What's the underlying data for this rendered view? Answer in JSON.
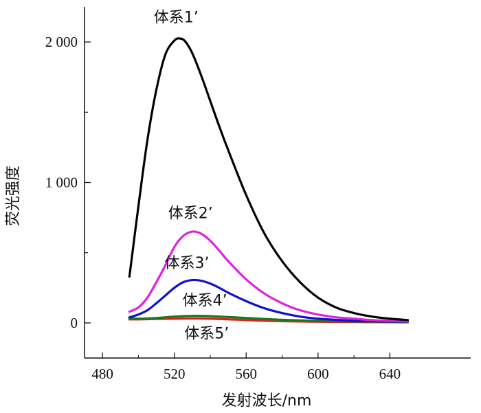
{
  "chart_data": {
    "type": "line",
    "title": "",
    "xlabel": "发射波长/nm",
    "ylabel": "荧光强度",
    "xlim": [
      470,
      685
    ],
    "ylim": [
      -250,
      2250
    ],
    "x_ticks": [
      480,
      520,
      560,
      600,
      640
    ],
    "x_tick_labels": [
      "480",
      "520",
      "560",
      "600",
      "640"
    ],
    "y_ticks": [
      0,
      1000,
      2000
    ],
    "y_tick_labels": [
      "0",
      "1 000",
      "2 000"
    ],
    "grid": false,
    "legend": "none",
    "series": [
      {
        "name": "体系1’",
        "color": "#000000",
        "x": [
          495,
          500,
          505,
          510,
          515,
          520,
          523,
          526,
          530,
          535,
          540,
          545,
          550,
          560,
          570,
          580,
          590,
          600,
          610,
          620,
          630,
          640,
          650
        ],
        "y": [
          330,
          830,
          1300,
          1660,
          1910,
          2010,
          2025,
          2005,
          1920,
          1760,
          1580,
          1400,
          1230,
          910,
          640,
          440,
          290,
          180,
          110,
          70,
          45,
          30,
          20
        ]
      },
      {
        "name": "体系2’",
        "color": "#e020e0",
        "x": [
          495,
          500,
          505,
          510,
          515,
          520,
          525,
          530,
          535,
          540,
          545,
          550,
          560,
          570,
          580,
          590,
          600,
          610,
          620,
          630,
          640,
          650
        ],
        "y": [
          80,
          110,
          180,
          290,
          410,
          540,
          620,
          650,
          635,
          585,
          515,
          440,
          310,
          210,
          140,
          90,
          60,
          40,
          30,
          20,
          15,
          10
        ]
      },
      {
        "name": "体系3’",
        "color": "#1010d0",
        "x": [
          495,
          500,
          505,
          510,
          515,
          520,
          525,
          530,
          535,
          540,
          545,
          550,
          560,
          570,
          580,
          590,
          600,
          610,
          620,
          630,
          640,
          650
        ],
        "y": [
          40,
          60,
          90,
          140,
          195,
          250,
          290,
          305,
          300,
          280,
          250,
          215,
          155,
          105,
          70,
          45,
          30,
          22,
          15,
          12,
          10,
          8
        ]
      },
      {
        "name": "体系4’",
        "color": "#1a7a1a",
        "x": [
          495,
          500,
          510,
          520,
          530,
          540,
          550,
          560,
          580,
          600,
          620,
          640,
          650
        ],
        "y": [
          35,
          30,
          35,
          45,
          50,
          48,
          42,
          35,
          22,
          14,
          10,
          8,
          6
        ]
      },
      {
        "name": "体系5’",
        "color": "#e02020",
        "x": [
          495,
          500,
          510,
          520,
          530,
          540,
          550,
          560,
          580,
          600,
          620,
          640,
          650
        ],
        "y": [
          25,
          25,
          28,
          30,
          32,
          30,
          26,
          20,
          12,
          8,
          6,
          5,
          4
        ]
      }
    ],
    "annotations": [
      {
        "text": "体系1’",
        "x": 521,
        "y": 2140
      },
      {
        "text": "体系2’",
        "x": 529,
        "y": 745
      },
      {
        "text": "体系3’",
        "x": 527,
        "y": 390
      },
      {
        "text": "体系4’",
        "x": 537,
        "y": 125
      },
      {
        "text": "体系5’",
        "x": 538,
        "y": -110
      }
    ]
  }
}
